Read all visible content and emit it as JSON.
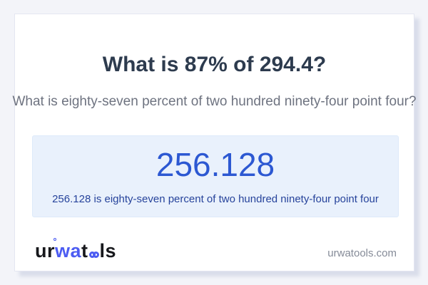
{
  "question": {
    "title": "What is 87% of 294.4?",
    "subtitle": "What is eighty-seven percent of two hundred ninety-four point four?"
  },
  "answer": {
    "value": "256.128",
    "sentence": "256.128 is eighty-seven percent of two hundred ninety-four point four"
  },
  "brand": {
    "logo_part_ur": "ur",
    "logo_part_wa": "wa",
    "logo_part_t": "t",
    "logo_part_ls": "ls",
    "glasses_icon": "oo-glasses-icon",
    "ring_icon": "degree-ring-icon",
    "domain": "urwatools.com"
  },
  "colors": {
    "page_bg": "#f3f4f9",
    "card_bg": "#ffffff",
    "card_border": "#e4e6f1",
    "card_shadow": "#d9ddea",
    "heading_text": "#2d3b4e",
    "subtitle_text": "#6e7380",
    "answer_box_bg": "#e9f1fc",
    "answer_box_border": "#ddeafa",
    "answer_value_text": "#2c58d2",
    "answer_sentence_text": "#26439b",
    "logo_black": "#17181c",
    "logo_blue": "#4c5cf2",
    "domain_text": "#858b98"
  }
}
